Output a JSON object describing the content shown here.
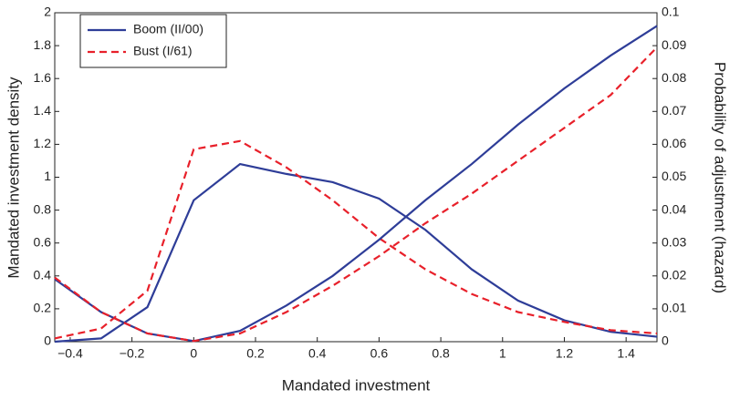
{
  "chart_data": {
    "type": "line",
    "x_label": "Mandated investment",
    "y_label": "Mandated investment density",
    "y2_label": "Probability of adjustment (hazard)",
    "x": [
      -0.45,
      -0.3,
      -0.15,
      0,
      0.15,
      0.3,
      0.45,
      0.6,
      0.75,
      0.9,
      1.05,
      1.2,
      1.35,
      1.5
    ],
    "xlim": [
      -0.45,
      1.5
    ],
    "xticks": [
      {
        "value": -0.4,
        "label": "−0.4"
      },
      {
        "value": -0.2,
        "label": "−0.2"
      },
      0,
      0.2,
      0.4,
      0.6,
      0.8,
      1,
      1.2,
      1.4
    ],
    "ylim": [
      0,
      2
    ],
    "yticks": [
      0,
      0.2,
      0.4,
      0.6,
      0.8,
      1,
      1.2,
      1.4,
      1.6,
      1.8,
      2
    ],
    "y2lim": [
      0,
      0.1
    ],
    "y2ticks": [
      0,
      0.01,
      0.02,
      0.03,
      0.04,
      0.05,
      0.06,
      0.07,
      0.08,
      0.09,
      0.1
    ],
    "legend": "upper left",
    "series": [
      {
        "name": "Boom (II/00)",
        "color": "#2e3d98",
        "dashed": false,
        "values": [
          0.0,
          0.02,
          0.21,
          0.86,
          1.08,
          1.02,
          0.97,
          0.87,
          0.68,
          0.44,
          0.25,
          0.13,
          0.06,
          0.03
        ]
      },
      {
        "name": "Bust (I/61)",
        "color": "#e8202a",
        "dashed": true,
        "values": [
          0.02,
          0.08,
          0.31,
          1.17,
          1.22,
          1.06,
          0.86,
          0.63,
          0.44,
          0.29,
          0.18,
          0.12,
          0.07,
          0.05
        ]
      },
      {
        "color": "#2e3d98",
        "dashed": false,
        "axis": "y2",
        "values": [
          0.019,
          0.009,
          0.0025,
          0.0002,
          0.0033,
          0.011,
          0.02,
          0.031,
          0.043,
          0.054,
          0.066,
          0.077,
          0.087,
          0.096
        ]
      },
      {
        "color": "#e8202a",
        "dashed": true,
        "axis": "y2",
        "values": [
          0.0195,
          0.009,
          0.0025,
          0.0002,
          0.0025,
          0.009,
          0.017,
          0.026,
          0.036,
          0.045,
          0.055,
          0.065,
          0.075,
          0.0895
        ]
      }
    ]
  }
}
